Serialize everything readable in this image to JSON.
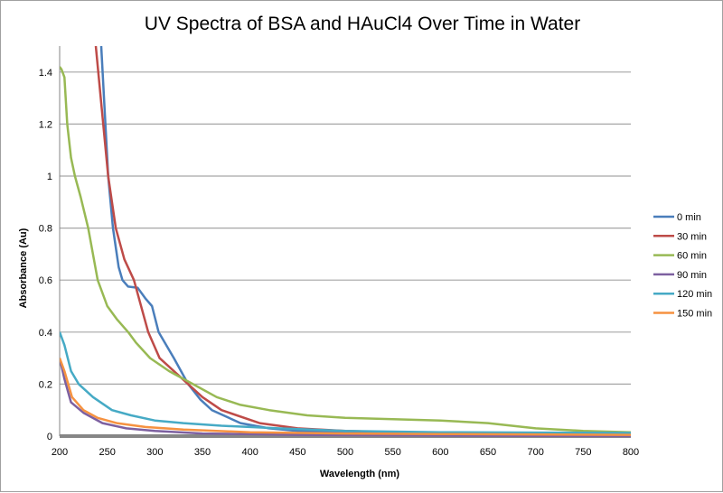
{
  "chart_data": {
    "type": "line",
    "title": "UV Spectra of BSA and HAuCl4 Over Time in Water",
    "xlabel": "Wavelength (nm)",
    "ylabel": "Absorbance (Au)",
    "xlim": [
      200,
      800
    ],
    "ylim": [
      0,
      1.5
    ],
    "xticks": [
      "200",
      "250",
      "300",
      "350",
      "400",
      "450",
      "500",
      "550",
      "600",
      "650",
      "700",
      "750",
      "800"
    ],
    "yticks": [
      "0",
      "0.2",
      "0.4",
      "0.6",
      "0.8",
      "1",
      "1.2",
      "1.4"
    ],
    "grid": "horizontal",
    "legend": "right",
    "series": [
      {
        "name": "0 min",
        "color": "#4a7ebb",
        "points": [
          [
            243.7,
            1.5
          ],
          [
            251,
            1.0
          ],
          [
            256,
            0.8
          ],
          [
            262,
            0.65
          ],
          [
            266,
            0.6
          ],
          [
            272,
            0.575
          ],
          [
            282,
            0.57
          ],
          [
            290,
            0.53
          ],
          [
            297,
            0.5
          ],
          [
            304,
            0.4
          ],
          [
            320,
            0.3
          ],
          [
            335,
            0.2
          ],
          [
            348,
            0.14
          ],
          [
            360,
            0.1
          ],
          [
            390,
            0.05
          ],
          [
            420,
            0.03
          ],
          [
            450,
            0.02
          ],
          [
            550,
            0.01
          ],
          [
            800,
            0.005
          ]
        ]
      },
      {
        "name": "30 min",
        "color": "#be4b48",
        "points": [
          [
            238,
            1.5
          ],
          [
            251,
            1.0
          ],
          [
            259,
            0.8
          ],
          [
            268,
            0.68
          ],
          [
            278,
            0.6
          ],
          [
            293,
            0.4
          ],
          [
            305,
            0.3
          ],
          [
            335,
            0.2
          ],
          [
            350,
            0.15
          ],
          [
            370,
            0.1
          ],
          [
            410,
            0.05
          ],
          [
            450,
            0.03
          ],
          [
            500,
            0.02
          ],
          [
            600,
            0.01
          ],
          [
            800,
            0.005
          ]
        ]
      },
      {
        "name": "60 min",
        "color": "#98b954",
        "points": [
          [
            200,
            1.42
          ],
          [
            202,
            1.41
          ],
          [
            205,
            1.38
          ],
          [
            208,
            1.2
          ],
          [
            212,
            1.07
          ],
          [
            216,
            1.0
          ],
          [
            222,
            0.92
          ],
          [
            226,
            0.86
          ],
          [
            230,
            0.8
          ],
          [
            240,
            0.6
          ],
          [
            250,
            0.5
          ],
          [
            260,
            0.45
          ],
          [
            272,
            0.4
          ],
          [
            280,
            0.36
          ],
          [
            295,
            0.3
          ],
          [
            315,
            0.25
          ],
          [
            340,
            0.2
          ],
          [
            365,
            0.15
          ],
          [
            390,
            0.12
          ],
          [
            420,
            0.1
          ],
          [
            460,
            0.08
          ],
          [
            500,
            0.07
          ],
          [
            550,
            0.065
          ],
          [
            600,
            0.06
          ],
          [
            650,
            0.05
          ],
          [
            700,
            0.03
          ],
          [
            750,
            0.02
          ],
          [
            800,
            0.015
          ]
        ]
      },
      {
        "name": "90 min",
        "color": "#7d60a0",
        "points": [
          [
            200,
            0.3
          ],
          [
            205,
            0.22
          ],
          [
            212,
            0.13
          ],
          [
            225,
            0.09
          ],
          [
            245,
            0.05
          ],
          [
            270,
            0.03
          ],
          [
            300,
            0.02
          ],
          [
            350,
            0.01
          ],
          [
            450,
            0.005
          ],
          [
            600,
            0.002
          ],
          [
            800,
            0.0
          ]
        ]
      },
      {
        "name": "120 min",
        "color": "#46aac5",
        "points": [
          [
            200,
            0.4
          ],
          [
            205,
            0.35
          ],
          [
            212,
            0.25
          ],
          [
            220,
            0.2
          ],
          [
            235,
            0.15
          ],
          [
            255,
            0.1
          ],
          [
            275,
            0.08
          ],
          [
            300,
            0.06
          ],
          [
            330,
            0.05
          ],
          [
            370,
            0.04
          ],
          [
            430,
            0.03
          ],
          [
            500,
            0.02
          ],
          [
            600,
            0.015
          ],
          [
            800,
            0.012
          ]
        ]
      },
      {
        "name": "150 min",
        "color": "#f69240",
        "points": [
          [
            200,
            0.3
          ],
          [
            205,
            0.25
          ],
          [
            213,
            0.15
          ],
          [
            225,
            0.1
          ],
          [
            240,
            0.07
          ],
          [
            260,
            0.05
          ],
          [
            290,
            0.035
          ],
          [
            330,
            0.025
          ],
          [
            400,
            0.015
          ],
          [
            500,
            0.01
          ],
          [
            600,
            0.008
          ],
          [
            800,
            0.005
          ]
        ]
      }
    ]
  }
}
